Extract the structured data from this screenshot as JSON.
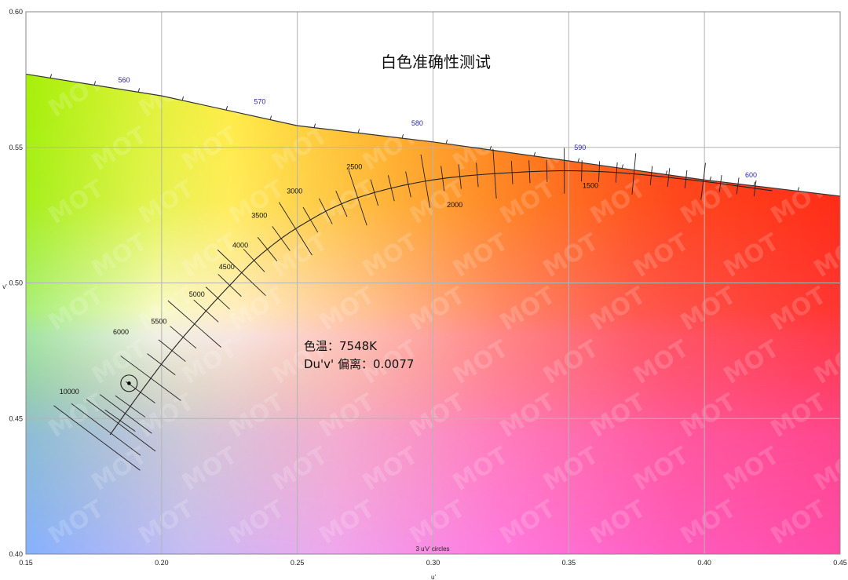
{
  "chart_data": {
    "type": "scatter",
    "title": "白色准确性测试",
    "xlabel": "u'",
    "ylabel": "v'",
    "xlim": [
      0.15,
      0.45
    ],
    "ylim": [
      0.4,
      0.6
    ],
    "x_ticks": [
      "0.15",
      "0.20",
      "0.25",
      "0.30",
      "0.35",
      "0.40",
      "0.45"
    ],
    "y_ticks": [
      "0.40",
      "0.45",
      "0.50",
      "0.55",
      "0.60"
    ],
    "grid": true,
    "spectrum_locus": {
      "points": [
        [
          0.15,
          0.577
        ],
        [
          0.2,
          0.569
        ],
        [
          0.25,
          0.558
        ],
        [
          0.3,
          0.552
        ],
        [
          0.35,
          0.545
        ],
        [
          0.4,
          0.538
        ],
        [
          0.45,
          0.532
        ]
      ],
      "labels": [
        {
          "text": "560",
          "u": 0.184,
          "v": 0.574
        },
        {
          "text": "570",
          "u": 0.234,
          "v": 0.566
        },
        {
          "text": "580",
          "u": 0.292,
          "v": 0.558
        },
        {
          "text": "590",
          "u": 0.352,
          "v": 0.549
        },
        {
          "text": "600",
          "u": 0.415,
          "v": 0.539
        }
      ]
    },
    "planckian_locus": {
      "points": [
        [
          0.181,
          0.444
        ],
        [
          0.191,
          0.458
        ],
        [
          0.203,
          0.474
        ],
        [
          0.214,
          0.487
        ],
        [
          0.225,
          0.499
        ],
        [
          0.236,
          0.51
        ],
        [
          0.251,
          0.521
        ],
        [
          0.271,
          0.531
        ],
        [
          0.3,
          0.538
        ],
        [
          0.335,
          0.541
        ],
        [
          0.363,
          0.541
        ],
        [
          0.395,
          0.538
        ],
        [
          0.425,
          0.534
        ]
      ],
      "cct_labels": [
        {
          "text": "10000",
          "u": 0.166,
          "v": 0.459
        },
        {
          "text": "6000",
          "u": 0.185,
          "v": 0.481
        },
        {
          "text": "5500",
          "u": 0.199,
          "v": 0.485
        },
        {
          "text": "5000",
          "u": 0.213,
          "v": 0.495
        },
        {
          "text": "4500",
          "u": 0.224,
          "v": 0.505
        },
        {
          "text": "4000",
          "u": 0.229,
          "v": 0.513
        },
        {
          "text": "3500",
          "u": 0.236,
          "v": 0.524
        },
        {
          "text": "3000",
          "u": 0.249,
          "v": 0.533
        },
        {
          "text": "2500",
          "u": 0.271,
          "v": 0.542
        },
        {
          "text": "2000",
          "u": 0.308,
          "v": 0.528
        },
        {
          "text": "1500",
          "u": 0.358,
          "v": 0.535
        }
      ]
    },
    "measured_point": {
      "u": 0.188,
      "v": 0.463
    },
    "circle_note": "3 u'v' circles",
    "annotation": {
      "cct": "色温：7548K",
      "duv": "Du'v' 偏离：0.0077"
    },
    "watermark": "MOT",
    "colors": {
      "frame": "#888888",
      "grid": "#b4b4b4",
      "locus_label": "#2a2aa8",
      "point": "#000000"
    }
  }
}
